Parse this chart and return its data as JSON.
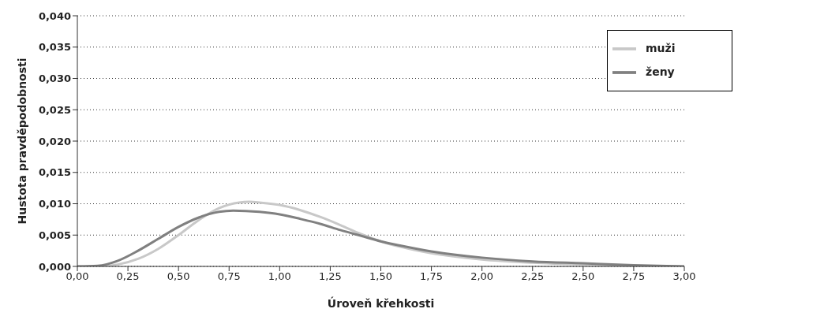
{
  "chart_data": {
    "type": "line",
    "xlabel": "Úroveň křehkosti",
    "ylabel": "Hustota pravděpodobnosti",
    "xlim": [
      0,
      3
    ],
    "ylim": [
      0,
      0.04
    ],
    "xticks": [
      {
        "value": 0,
        "label": "0,00"
      },
      {
        "value": 0.25,
        "label": "0,25"
      },
      {
        "value": 0.5,
        "label": "0,50"
      },
      {
        "value": 0.75,
        "label": "0,75"
      },
      {
        "value": 1,
        "label": "1,00"
      },
      {
        "value": 1.25,
        "label": "1,25"
      },
      {
        "value": 1.5,
        "label": "1,50"
      },
      {
        "value": 1.75,
        "label": "1,75"
      },
      {
        "value": 2,
        "label": "2,00"
      },
      {
        "value": 2.25,
        "label": "2,25"
      },
      {
        "value": 2.5,
        "label": "2,50"
      },
      {
        "value": 2.75,
        "label": "2,75"
      },
      {
        "value": 3,
        "label": "3,00"
      }
    ],
    "yticks": [
      {
        "value": 0,
        "label": "0,000"
      },
      {
        "value": 0.005,
        "label": "0,005"
      },
      {
        "value": 0.01,
        "label": "0,010"
      },
      {
        "value": 0.015,
        "label": "0,015"
      },
      {
        "value": 0.02,
        "label": "0,020"
      },
      {
        "value": 0.025,
        "label": "0,025"
      },
      {
        "value": 0.03,
        "label": "0,030"
      },
      {
        "value": 0.035,
        "label": "0,035"
      },
      {
        "value": 0.04,
        "label": "0,040"
      }
    ],
    "grid": "y",
    "legend": "top right",
    "marker": "none",
    "line_style": "solid",
    "series": [
      {
        "name": "muži",
        "color": "#c8c8c8",
        "x": [
          0,
          0.1,
          0.2,
          0.3,
          0.4,
          0.5,
          0.6,
          0.7,
          0.8,
          0.85,
          0.9,
          1.0,
          1.1,
          1.2,
          1.3,
          1.4,
          1.5,
          1.6,
          1.75,
          2.0,
          2.25,
          2.5,
          2.75,
          3.0
        ],
        "values": [
          0,
          0,
          0.0003,
          0.0012,
          0.0028,
          0.005,
          0.0074,
          0.0093,
          0.0102,
          0.0103,
          0.0102,
          0.0098,
          0.009,
          0.0079,
          0.0066,
          0.0052,
          0.004,
          0.0031,
          0.0021,
          0.0011,
          0.0006,
          0.0003,
          0.0001,
          0
        ]
      },
      {
        "name": "ženy",
        "color": "#808080",
        "x": [
          0,
          0.1,
          0.2,
          0.3,
          0.4,
          0.5,
          0.6,
          0.7,
          0.77,
          0.9,
          1.0,
          1.1,
          1.2,
          1.3,
          1.4,
          1.5,
          1.6,
          1.75,
          2.0,
          2.25,
          2.5,
          2.75,
          3.0
        ],
        "values": [
          0,
          0.0001,
          0.0009,
          0.0025,
          0.0044,
          0.0063,
          0.0078,
          0.0087,
          0.0089,
          0.0087,
          0.0083,
          0.0076,
          0.0068,
          0.0058,
          0.0049,
          0.004,
          0.0033,
          0.0024,
          0.0014,
          0.0008,
          0.0005,
          0.0002,
          0
        ]
      }
    ]
  }
}
